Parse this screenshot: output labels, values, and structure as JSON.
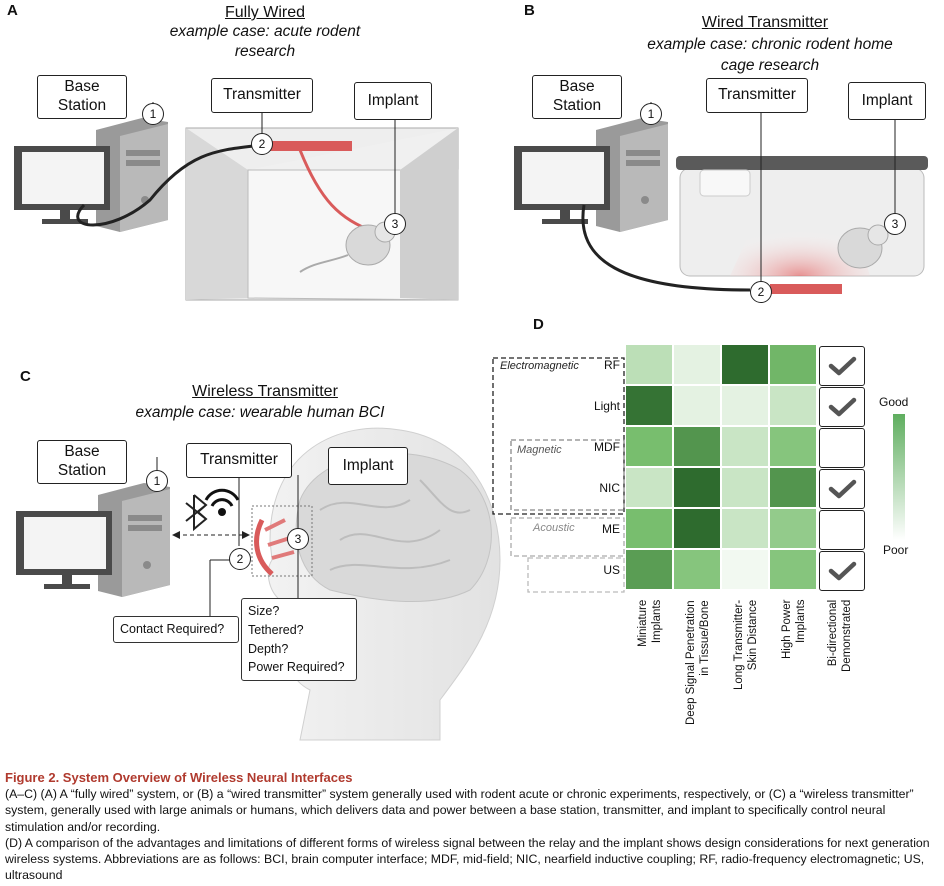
{
  "panelA": {
    "label": "A",
    "title": "Fully Wired",
    "subtitle_line1": "example case: acute rodent",
    "subtitle_line2": "research",
    "base_station_line1": "Base",
    "base_station_line2": "Station",
    "transmitter": "Transmitter",
    "implant": "Implant",
    "n1": "1",
    "n2": "2",
    "n3": "3"
  },
  "panelB": {
    "label": "B",
    "title": "Wired Transmitter",
    "subtitle_line1": "example case: chronic rodent home",
    "subtitle_line2": "cage research",
    "base_station_line1": "Base",
    "base_station_line2": "Station",
    "transmitter": "Transmitter",
    "implant": "Implant",
    "n1": "1",
    "n2": "2",
    "n3": "3"
  },
  "panelC": {
    "label": "C",
    "title": "Wireless Transmitter",
    "subtitle": "example case: wearable human BCI",
    "base_station_line1": "Base",
    "base_station_line2": "Station",
    "transmitter": "Transmitter",
    "implant": "Implant",
    "contact": "Contact Required?",
    "questions": [
      "Size?",
      "Tethered?",
      "Depth?",
      "Power Required?"
    ],
    "n1": "1",
    "n2": "2",
    "n3": "3"
  },
  "panelD": {
    "label": "D",
    "groups": {
      "electromagnetic": "Electromagnetic",
      "magnetic": "Magnetic",
      "acoustic": "Acoustic"
    },
    "rows": [
      "RF",
      "Light",
      "MDF",
      "NIC",
      "ME",
      "US"
    ],
    "columns": [
      [
        "Miniature",
        "Implants"
      ],
      [
        "Deep Signal Penetration",
        "in Tissue/Bone"
      ],
      [
        "Long Transmitter-",
        "Skin Distance"
      ],
      [
        "High Power",
        "Implants"
      ],
      [
        "Bi-directional",
        "Demonstrated"
      ]
    ],
    "scale_good": "Good",
    "scale_poor": "Poor",
    "colors": {
      "good": "#2e6b2e",
      "poor": "#ffffff"
    }
  },
  "chart_data": {
    "type": "heatmap",
    "rows": [
      "RF",
      "Light",
      "MDF",
      "NIC",
      "ME",
      "US"
    ],
    "columns": [
      "Miniature Implants",
      "Deep Signal Penetration in Tissue/Bone",
      "Long Transmitter-Skin Distance",
      "High Power Implants"
    ],
    "values": [
      [
        0.25,
        0.1,
        1.0,
        0.55
      ],
      [
        0.95,
        0.1,
        0.1,
        0.2
      ],
      [
        0.5,
        0.75,
        0.2,
        0.45
      ],
      [
        0.2,
        1.0,
        0.2,
        0.75
      ],
      [
        0.5,
        1.0,
        0.2,
        0.4
      ],
      [
        0.7,
        0.45,
        0.05,
        0.45
      ]
    ],
    "bidirectional_demonstrated": [
      true,
      true,
      false,
      true,
      false,
      true
    ],
    "scale": [
      "Poor",
      "Good"
    ]
  },
  "caption": {
    "title": "Figure 2.  System Overview of Wireless Neural Interfaces",
    "para1": "(A–C) (A) A “fully wired” system, or (B) a “wired transmitter” system generally used with rodent acute or chronic experiments, respectively, or (C) a “wireless transmitter” system, generally used with large animals or humans, which delivers data and power between a base station, transmitter, and implant to specifically control neural stimulation and/or recording.",
    "para2": "(D) A comparison of the advantages and limitations of different forms of wireless signal between the relay and the implant shows design considerations for next generation wireless systems. Abbreviations are as follows: BCI, brain computer interface; MDF, mid-field; NIC, nearfield inductive coupling; RF, radio-frequency electromagnetic; US, ultrasound"
  }
}
